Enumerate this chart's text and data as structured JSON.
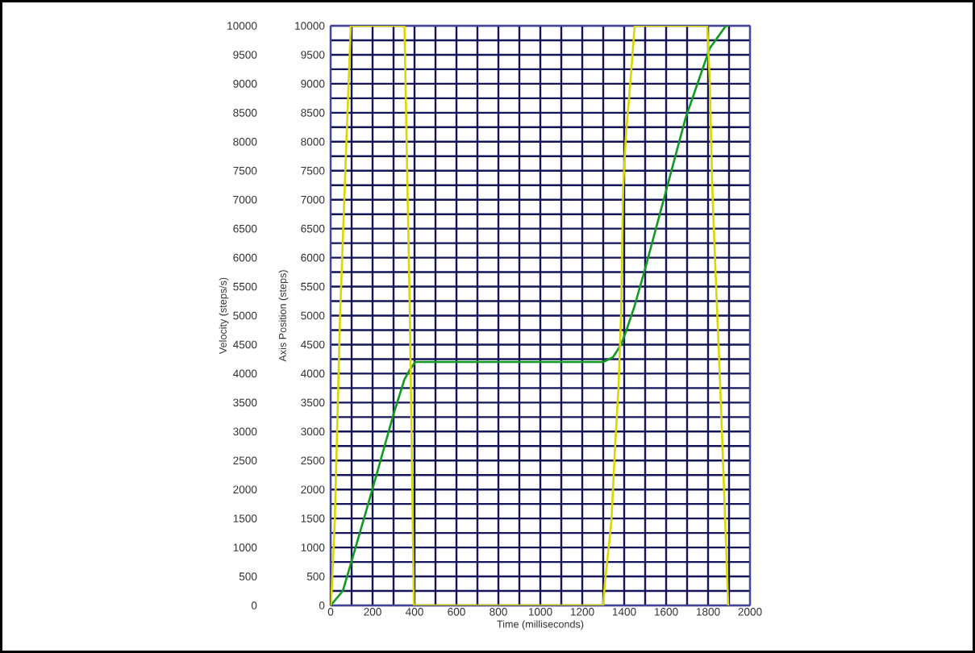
{
  "chart_data": {
    "type": "line",
    "xlabel": "Time (milliseconds)",
    "ylabel": "Velocity (steps/s)",
    "y2label": "Axis Position (steps)",
    "xlim": [
      0,
      2000
    ],
    "xticks": [
      0,
      {
        "value": 100,
        "label": null
      },
      200,
      {
        "value": 300,
        "label": null
      },
      400,
      {
        "value": 500,
        "label": null
      },
      600,
      {
        "value": 700,
        "label": null
      },
      800,
      {
        "value": 900,
        "label": null
      },
      1000,
      {
        "value": 1100,
        "label": null
      },
      1200,
      {
        "value": 1300,
        "label": null
      },
      1400,
      {
        "value": 1500,
        "label": null
      },
      1600,
      {
        "value": 1700,
        "label": null
      },
      1800,
      {
        "value": 1900,
        "label": null
      },
      2000
    ],
    "ylim": [
      0,
      10000
    ],
    "yticks": [
      0,
      500,
      1000,
      1500,
      2000,
      2500,
      3000,
      3500,
      4000,
      4500,
      5000,
      5500,
      6000,
      6500,
      7000,
      7500,
      8000,
      8500,
      9000,
      9500,
      10000
    ],
    "y2lim": [
      0,
      10000
    ],
    "y2ticks": [
      0,
      {
        "value": 250,
        "label": null
      },
      500,
      {
        "value": 750,
        "label": null
      },
      1000,
      {
        "value": 1250,
        "label": null
      },
      1500,
      {
        "value": 1750,
        "label": null
      },
      2000,
      {
        "value": 2250,
        "label": null
      },
      2500,
      {
        "value": 2750,
        "label": null
      },
      3000,
      {
        "value": 3250,
        "label": null
      },
      3500,
      {
        "value": 3750,
        "label": null
      },
      4000,
      {
        "value": 4250,
        "label": null
      },
      4500,
      {
        "value": 4750,
        "label": null
      },
      5000,
      {
        "value": 5250,
        "label": null
      },
      5500,
      {
        "value": 5750,
        "label": null
      },
      6000,
      {
        "value": 6250,
        "label": null
      },
      6500,
      {
        "value": 6750,
        "label": null
      },
      7000,
      {
        "value": 7250,
        "label": null
      },
      7500,
      {
        "value": 7750,
        "label": null
      },
      8000,
      {
        "value": 8250,
        "label": null
      },
      8500,
      {
        "value": 8750,
        "label": null
      },
      9000,
      {
        "value": 9250,
        "label": null
      },
      9500,
      {
        "value": 9750,
        "label": null
      },
      10000
    ],
    "grid": true,
    "marker": "none",
    "line_style": "solid",
    "series": [
      {
        "color": "#d8d800",
        "axis": "y",
        "x": [
          0,
          5,
          20,
          45,
          70,
          96,
          352,
          378,
          397,
          1300,
          1308,
          1339,
          1358,
          1373,
          1385,
          1395,
          1408,
          1430,
          1450,
          1796,
          1808,
          1820,
          1835,
          1858,
          1877,
          1896
        ],
        "values": [
          0,
          250,
          1500,
          5000,
          7500,
          10000,
          10000,
          5000,
          0,
          0,
          390,
          1450,
          2840,
          3770,
          5000,
          7200,
          8100,
          9050,
          10000,
          10000,
          9050,
          7200,
          5810,
          3770,
          1920,
          0
        ]
      },
      {
        "color": "#109a20",
        "axis": "y2",
        "x": [
          0,
          58,
          103,
          199,
          300,
          352,
          378,
          404,
          1300,
          1346,
          1385,
          1410,
          1449,
          1500,
          1589,
          1692,
          1808,
          1885,
          1900
        ],
        "values": [
          0,
          250,
          800,
          2000,
          3300,
          3900,
          4070,
          4200,
          4200,
          4280,
          4500,
          4740,
          5160,
          5810,
          7010,
          8400,
          9610,
          10000,
          10000
        ]
      }
    ]
  }
}
